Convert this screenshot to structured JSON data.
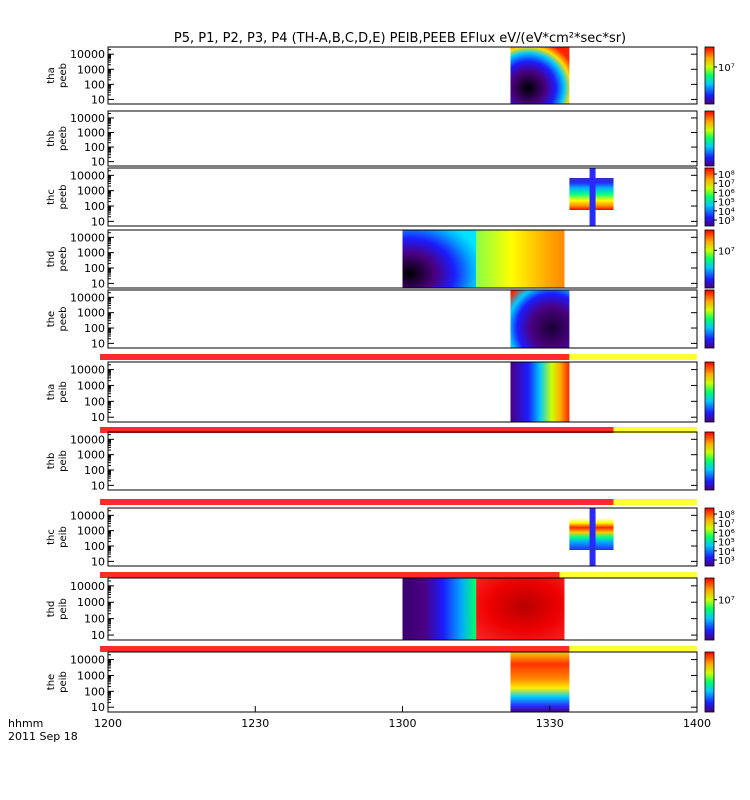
{
  "chart_data": {
    "type": "heatmap",
    "title": "P5, P1, P2, P3, P4 (TH-A,B,C,D,E) PEIB,PEEB EFlux eV/(eV*cm²*sec*sr)",
    "xlabel": "hhmm",
    "date_label": "2011 Sep 18",
    "x_ticks": [
      "1200",
      "1230",
      "1300",
      "1330",
      "1400"
    ],
    "y_ticks": [
      "10000",
      "1000",
      "100",
      "10"
    ],
    "ylim": [
      5,
      30000
    ],
    "y_scale": "log",
    "x_range": [
      "1200",
      "1400"
    ],
    "status_bar_colors": {
      "on": "#ff2a2a",
      "off": "#ffff33"
    },
    "panels": [
      {
        "label": [
          "tha",
          "peeb"
        ],
        "colorbar_ticks": [
          "10⁷"
        ],
        "spectrogram": [
          {
            "start": "1322",
            "end": "1334",
            "style": "peeb-a"
          }
        ],
        "status_bar": null
      },
      {
        "label": [
          "thb",
          "peeb"
        ],
        "colorbar_ticks": [],
        "spectrogram": [],
        "status_bar": null
      },
      {
        "label": [
          "thc",
          "peeb"
        ],
        "colorbar_ticks": [
          "10⁸",
          "10⁷",
          "10⁶",
          "10⁵",
          "10⁴",
          "10³"
        ],
        "spectrogram": [
          {
            "start": "1334",
            "end": "1343",
            "style": "peeb-c"
          }
        ],
        "status_bar": null
      },
      {
        "label": [
          "thd",
          "peeb"
        ],
        "colorbar_ticks": [
          "10⁷"
        ],
        "spectrogram": [
          {
            "start": "1300",
            "end": "1315",
            "style": "dark-core"
          },
          {
            "start": "1315",
            "end": "1333",
            "style": "warm"
          }
        ],
        "status_bar": null
      },
      {
        "label": [
          "the",
          "peeb"
        ],
        "colorbar_ticks": [],
        "spectrogram": [
          {
            "start": "1322",
            "end": "1334",
            "style": "peeb-e"
          }
        ],
        "status_bar": {
          "on_start": "1200",
          "on_end": "1334"
        }
      },
      {
        "label": [
          "tha",
          "peib"
        ],
        "colorbar_ticks": [],
        "spectrogram": [
          {
            "start": "1322",
            "end": "1334",
            "style": "peib-a"
          }
        ],
        "status_bar": {
          "on_start": "1200",
          "on_end": "1343"
        }
      },
      {
        "label": [
          "thb",
          "peib"
        ],
        "colorbar_ticks": [],
        "spectrogram": [],
        "status_bar": {
          "on_start": "1200",
          "on_end": "1343"
        }
      },
      {
        "label": [
          "thc",
          "peib"
        ],
        "colorbar_ticks": [
          "10⁸",
          "10⁷",
          "10⁶",
          "10⁵",
          "10⁴",
          "10³"
        ],
        "spectrogram": [
          {
            "start": "1334",
            "end": "1343",
            "style": "peib-c"
          }
        ],
        "status_bar": {
          "on_start": "1200",
          "on_end": "1332"
        }
      },
      {
        "label": [
          "thd",
          "peib"
        ],
        "colorbar_ticks": [
          "10⁷"
        ],
        "spectrogram": [
          {
            "start": "1300",
            "end": "1315",
            "style": "peib-d1"
          },
          {
            "start": "1315",
            "end": "1333",
            "style": "peib-d2"
          }
        ],
        "status_bar": {
          "on_start": "1200",
          "on_end": "1334"
        }
      },
      {
        "label": [
          "the",
          "peib"
        ],
        "colorbar_ticks": [],
        "spectrogram": [
          {
            "start": "1322",
            "end": "1334",
            "style": "peib-e"
          }
        ],
        "status_bar": null
      }
    ]
  }
}
